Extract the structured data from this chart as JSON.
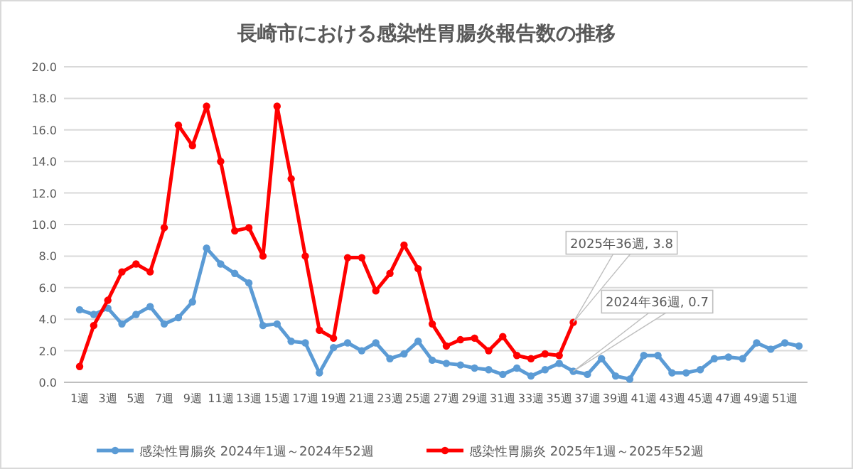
{
  "chart_data": {
    "type": "line",
    "title": "長崎市における感染性胃腸炎報告数の推移",
    "categories": [
      "1週",
      null,
      "3週",
      null,
      "5週",
      null,
      "7週",
      null,
      "9週",
      null,
      "11週",
      null,
      "13週",
      null,
      "15週",
      null,
      "17週",
      null,
      "19週",
      null,
      "21週",
      null,
      "23週",
      null,
      "25週",
      null,
      "27週",
      null,
      "29週",
      null,
      "31週",
      null,
      "33週",
      null,
      "35週",
      null,
      "37週",
      null,
      "39週",
      null,
      "41週",
      null,
      "43週",
      null,
      "45週",
      null,
      "47週",
      null,
      "49週",
      null,
      "51週",
      null
    ],
    "series": [
      {
        "name": "感染性胃腸炎 2024年1週～2024年52週",
        "color": "#5b9bd5",
        "values": [
          4.6,
          4.3,
          4.7,
          3.7,
          4.3,
          4.8,
          3.7,
          4.1,
          5.1,
          8.5,
          7.5,
          6.9,
          6.3,
          3.6,
          3.7,
          2.6,
          2.5,
          0.6,
          2.2,
          2.5,
          2.0,
          2.5,
          1.5,
          1.8,
          2.6,
          1.4,
          1.2,
          1.1,
          0.9,
          0.8,
          0.5,
          0.9,
          0.4,
          0.8,
          1.2,
          0.7,
          0.5,
          1.5,
          0.4,
          0.2,
          1.7,
          1.7,
          0.6,
          0.6,
          0.8,
          1.5,
          1.6,
          1.5,
          2.5,
          2.1,
          2.5,
          2.3
        ]
      },
      {
        "name": "感染性胃腸炎 2025年1週～2025年52週",
        "color": "#ff0000",
        "values": [
          1.0,
          3.6,
          5.2,
          7.0,
          7.5,
          7.0,
          9.8,
          16.3,
          15.0,
          17.5,
          14.0,
          9.6,
          9.8,
          8.0,
          17.5,
          12.9,
          8.0,
          3.3,
          2.8,
          7.9,
          7.9,
          5.8,
          6.9,
          8.7,
          7.2,
          3.7,
          2.3,
          2.7,
          2.8,
          2.0,
          2.9,
          1.7,
          1.5,
          1.8,
          1.7,
          3.8,
          null,
          null,
          null,
          null,
          null,
          null,
          null,
          null,
          null,
          null,
          null,
          null,
          null,
          null,
          null,
          null
        ]
      }
    ],
    "ylim": [
      0,
      20
    ],
    "yticks": [
      {
        "value": 0,
        "label": "0.0"
      },
      {
        "value": 2,
        "label": "2.0"
      },
      {
        "value": 4,
        "label": "4.0"
      },
      {
        "value": 6,
        "label": "6.0"
      },
      {
        "value": 8,
        "label": "8.0"
      },
      {
        "value": 10,
        "label": "10.0"
      },
      {
        "value": 12,
        "label": "12.0"
      },
      {
        "value": 14,
        "label": "14.0"
      },
      {
        "value": 16,
        "label": "16.0"
      },
      {
        "value": 18,
        "label": "18.0"
      },
      {
        "value": 20,
        "label": "20.0"
      }
    ],
    "grid": "y",
    "legend": "bottom",
    "marker": "circle",
    "line_style": "solid",
    "annotations": [
      "2025年36週, 3.8",
      "2024年36週, 0.7"
    ]
  }
}
